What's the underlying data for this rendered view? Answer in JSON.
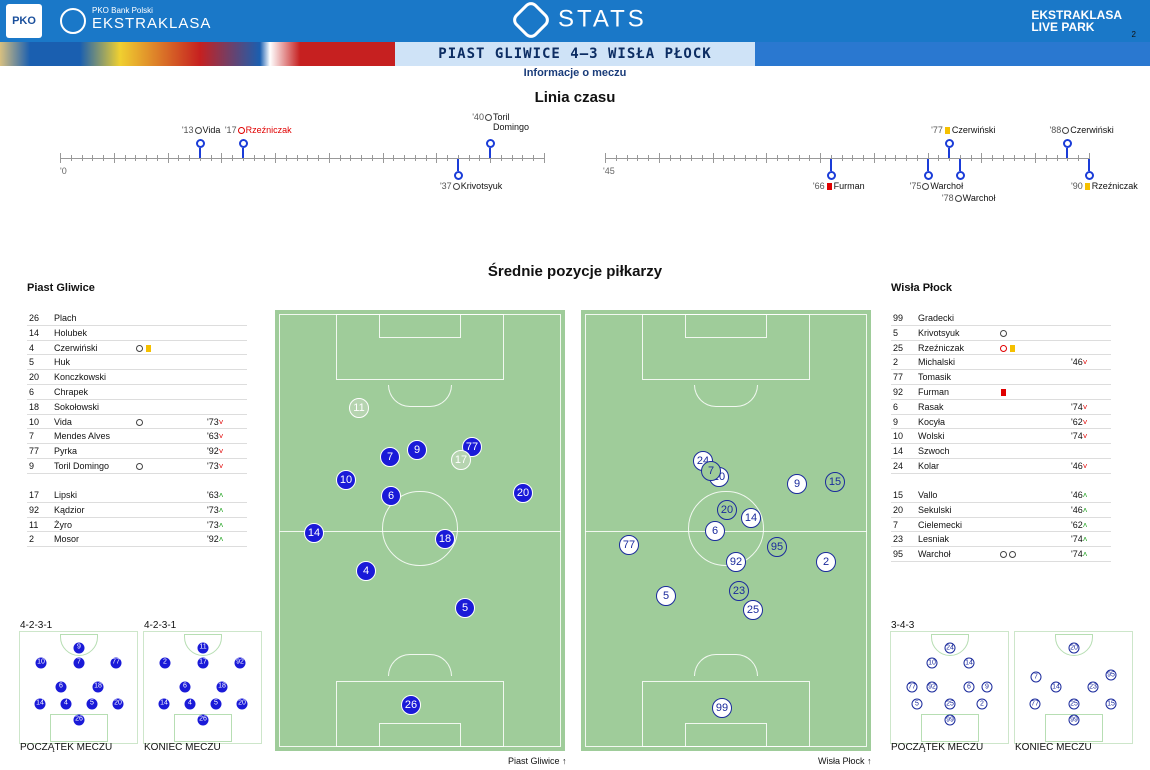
{
  "header": {
    "league_line1": "PKO Bank Polski",
    "league_line2": "EKSTRAKLASA",
    "stats": "STATS",
    "livepark_line1": "EKSTRAKLASA",
    "livepark_line2": "LIVE PARK",
    "page_number": "2"
  },
  "match_title": "PIAST GLIWICE 4–3 WISŁA PŁOCK",
  "subtitle": "Informacje o meczu",
  "timeline": {
    "title": "Linia czasu",
    "first_half_start": "'0",
    "second_half_start": "'45",
    "events": [
      {
        "minute": "'13",
        "name": "Vida",
        "icon": "ball-icon",
        "side": "home",
        "color": ""
      },
      {
        "minute": "'17",
        "name": "Rzeźniczak",
        "icon": "own-goal-icon",
        "side": "home",
        "color": "red"
      },
      {
        "minute": "'37",
        "name": "Krivotsyuk",
        "icon": "ball-icon",
        "side": "away",
        "color": ""
      },
      {
        "minute": "'40",
        "name": "Toril Domingo",
        "icon": "ball-icon",
        "side": "home",
        "color": ""
      },
      {
        "minute": "'66",
        "name": "Furman",
        "icon": "red-card-icon",
        "side": "away",
        "color": ""
      },
      {
        "minute": "'75",
        "name": "Warchoł",
        "icon": "ball-icon",
        "side": "away",
        "color": ""
      },
      {
        "minute": "'77",
        "name": "Czerwiński",
        "icon": "yellow-card-icon",
        "side": "home",
        "color": ""
      },
      {
        "minute": "'78",
        "name": "Warchoł",
        "icon": "ball-icon",
        "side": "away",
        "color": ""
      },
      {
        "minute": "'88",
        "name": "Czerwiński",
        "icon": "ball-icon",
        "side": "home",
        "color": ""
      },
      {
        "minute": "'90",
        "name": "Rzeźniczak",
        "icon": "yellow-card-icon",
        "side": "away",
        "color": ""
      }
    ]
  },
  "positions_title": "Średnie pozycje piłkarzy",
  "home": {
    "name": "Piast Gliwice",
    "starters": [
      {
        "no": "26",
        "name": "Plach",
        "icons": [],
        "sub": "",
        "dir": ""
      },
      {
        "no": "14",
        "name": "Holubek",
        "icons": [],
        "sub": "",
        "dir": ""
      },
      {
        "no": "4",
        "name": "Czerwiński",
        "icons": [
          "ball-icon",
          "yellow-card-icon"
        ],
        "sub": "",
        "dir": ""
      },
      {
        "no": "5",
        "name": "Huk",
        "icons": [],
        "sub": "",
        "dir": ""
      },
      {
        "no": "20",
        "name": "Konczkowski",
        "icons": [],
        "sub": "",
        "dir": ""
      },
      {
        "no": "6",
        "name": "Chrapek",
        "icons": [],
        "sub": "",
        "dir": ""
      },
      {
        "no": "18",
        "name": "Sokołowski",
        "icons": [],
        "sub": "",
        "dir": ""
      },
      {
        "no": "10",
        "name": "Vida",
        "icons": [
          "ball-icon"
        ],
        "sub": "'73",
        "dir": "down"
      },
      {
        "no": "7",
        "name": "Mendes Alves",
        "icons": [],
        "sub": "'63",
        "dir": "down"
      },
      {
        "no": "77",
        "name": "Pyrka",
        "icons": [],
        "sub": "'92",
        "dir": "down"
      },
      {
        "no": "9",
        "name": "Toril Domingo",
        "icons": [
          "ball-icon"
        ],
        "sub": "'73",
        "dir": "down"
      }
    ],
    "subs": [
      {
        "no": "17",
        "name": "Lipski",
        "icons": [],
        "sub": "'63",
        "dir": "up"
      },
      {
        "no": "92",
        "name": "Kądzior",
        "icons": [],
        "sub": "'73",
        "dir": "up"
      },
      {
        "no": "11",
        "name": "Żyro",
        "icons": [],
        "sub": "'73",
        "dir": "up"
      },
      {
        "no": "2",
        "name": "Mosor",
        "icons": [],
        "sub": "'92",
        "dir": "up"
      }
    ],
    "pitch_label": "Piast Gliwice",
    "formation_start": "4-2-3-1",
    "formation_end": "4-2-3-1",
    "start_label": "POCZĄTEK MECZU",
    "end_label": "KONIEC MECZU"
  },
  "away": {
    "name": "Wisła Płock",
    "starters": [
      {
        "no": "99",
        "name": "Gradecki",
        "icons": [],
        "sub": "",
        "dir": ""
      },
      {
        "no": "5",
        "name": "Krivotsyuk",
        "icons": [
          "ball-icon"
        ],
        "sub": "",
        "dir": ""
      },
      {
        "no": "25",
        "name": "Rzeźniczak",
        "icons": [
          "own-goal-icon",
          "yellow-card-icon"
        ],
        "sub": "",
        "dir": ""
      },
      {
        "no": "2",
        "name": "Michalski",
        "icons": [],
        "sub": "'46",
        "dir": "down"
      },
      {
        "no": "77",
        "name": "Tomasik",
        "icons": [],
        "sub": "",
        "dir": ""
      },
      {
        "no": "92",
        "name": "Furman",
        "icons": [
          "red-card-icon"
        ],
        "sub": "",
        "dir": ""
      },
      {
        "no": "6",
        "name": "Rasak",
        "icons": [],
        "sub": "'74",
        "dir": "down"
      },
      {
        "no": "9",
        "name": "Kocyła",
        "icons": [],
        "sub": "'62",
        "dir": "down"
      },
      {
        "no": "10",
        "name": "Wolski",
        "icons": [],
        "sub": "'74",
        "dir": "down"
      },
      {
        "no": "14",
        "name": "Szwoch",
        "icons": [],
        "sub": "",
        "dir": ""
      },
      {
        "no": "24",
        "name": "Kolar",
        "icons": [],
        "sub": "'46",
        "dir": "down"
      }
    ],
    "subs": [
      {
        "no": "15",
        "name": "Vallo",
        "icons": [],
        "sub": "'46",
        "dir": "up"
      },
      {
        "no": "20",
        "name": "Sekulski",
        "icons": [],
        "sub": "'46",
        "dir": "up"
      },
      {
        "no": "7",
        "name": "Cielemecki",
        "icons": [],
        "sub": "'62",
        "dir": "up"
      },
      {
        "no": "23",
        "name": "Lesniak",
        "icons": [],
        "sub": "'74",
        "dir": "up"
      },
      {
        "no": "95",
        "name": "Warchoł",
        "icons": [
          "ball-icon",
          "ball-icon"
        ],
        "sub": "'74",
        "dir": "up"
      }
    ],
    "pitch_label": "Wisła Płock",
    "formation_start": "3-4-3",
    "start_label": "POCZĄTEK MECZU",
    "end_label": "KONIEC MECZU"
  },
  "colors": {
    "home": "#1a1ad8",
    "away": "#ffffff",
    "pitch": "#9fcc9a",
    "header": "#1a78c8"
  }
}
